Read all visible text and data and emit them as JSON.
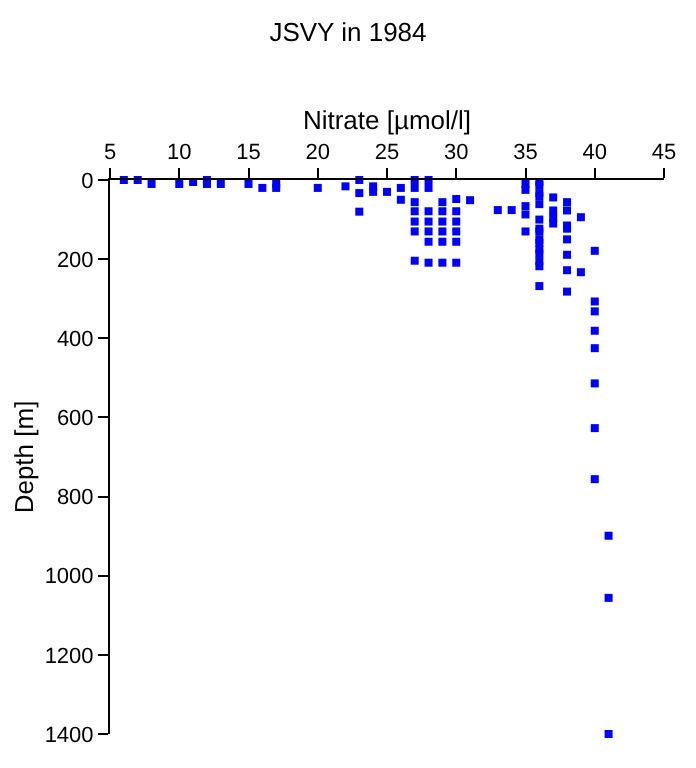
{
  "chart_data": {
    "type": "scatter",
    "title": "JSVY in 1984",
    "xlabel": "Nitrate [µmol/l]",
    "ylabel": "Depth [m]",
    "x": [
      6,
      7,
      8,
      10,
      11,
      12,
      12,
      13,
      15,
      16,
      17,
      17,
      20,
      22,
      23,
      23,
      23,
      24,
      24,
      25,
      26,
      26,
      27,
      27,
      27,
      27,
      27,
      27,
      27,
      28,
      28,
      28,
      28,
      28,
      28,
      28,
      29,
      29,
      29,
      29,
      29,
      29,
      30,
      30,
      30,
      30,
      30,
      30,
      31,
      33,
      34,
      35,
      35,
      35,
      35,
      35,
      36,
      36,
      36,
      36,
      36,
      36,
      36,
      36,
      36,
      36,
      36,
      36,
      36,
      36,
      36,
      37,
      37,
      37,
      37,
      38,
      38,
      38,
      38,
      38,
      38,
      38,
      38,
      39,
      39,
      40,
      40,
      40,
      40,
      40,
      40,
      40,
      40,
      41,
      41,
      41
    ],
    "series": [
      {
        "color": "#0000ff",
        "values": [
          0,
          0,
          10,
          10,
          5,
          0,
          10,
          10,
          10,
          20,
          10,
          20,
          20,
          16,
          0,
          33,
          80,
          16,
          30,
          30,
          20,
          50,
          0,
          20,
          56,
          79,
          105,
          130,
          204,
          0,
          20,
          79,
          105,
          130,
          156,
          209,
          56,
          79,
          105,
          130,
          156,
          209,
          48,
          79,
          105,
          130,
          156,
          209,
          51,
          76,
          76,
          10,
          25,
          66,
          87,
          130,
          5,
          13,
          33,
          41,
          61,
          100,
          123,
          131,
          151,
          159,
          176,
          186,
          205,
          218,
          268,
          44,
          77,
          95,
          110,
          56,
          77,
          115,
          123,
          150,
          189,
          228,
          282,
          94,
          233,
          179,
          307,
          332,
          381,
          425,
          514,
          627,
          756,
          899,
          1056,
          1400
        ]
      }
    ],
    "xlim": [
      5,
      45
    ],
    "xticks": [
      5,
      10,
      15,
      20,
      25,
      30,
      35,
      40,
      45
    ],
    "ylim": [
      1400,
      0
    ],
    "yticks": [
      0,
      200,
      400,
      600,
      800,
      1000,
      1200,
      1400
    ],
    "marker": "square"
  }
}
